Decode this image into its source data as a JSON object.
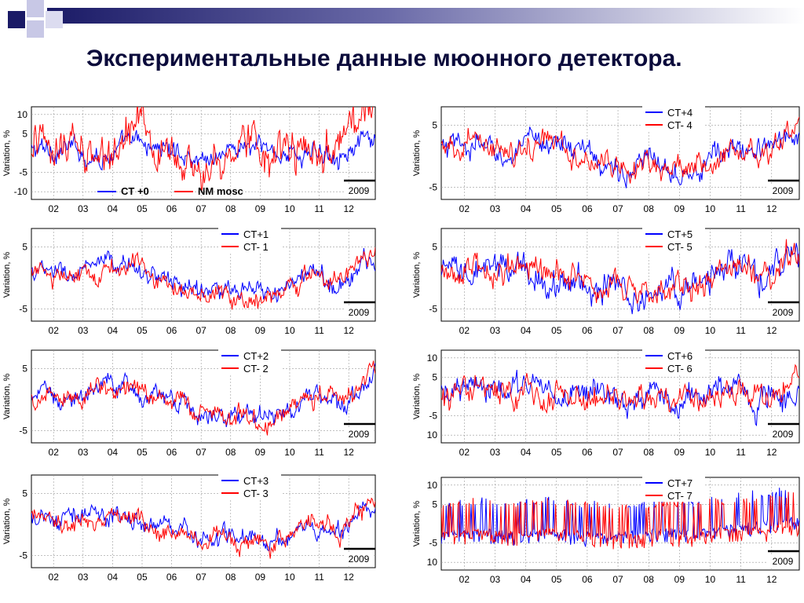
{
  "slide": {
    "title": "Экспериментальные данные мюонного детектора."
  },
  "colors": {
    "title": "#0b0b3b",
    "decor_dark": "#1a1a66",
    "decor_light": "#c8c8e6",
    "series_blue": "#0000ff",
    "series_red": "#ff0000",
    "grid": "#9a9a9a"
  },
  "chart_data": [
    {
      "type": "line",
      "panel": "top-left",
      "x": [
        "02",
        "03",
        "04",
        "05",
        "06",
        "07",
        "08",
        "09",
        "10",
        "11",
        "12"
      ],
      "yticks": [
        "10",
        "5",
        "-5",
        "-10"
      ],
      "ylabel": "Variation, %",
      "ylim": [
        -12,
        12
      ],
      "year_label": "2009",
      "grid": true,
      "legend_position": "bottom",
      "series": [
        {
          "name": "CT +0",
          "color": "#0000ff",
          "amplitude": 3,
          "values": [
            0.5,
            1.2,
            -0.8,
            2.4,
            1.1,
            -1.5,
            1.8,
            0.6,
            -0.5,
            1.2,
            2.6
          ]
        },
        {
          "name": "NM mosc",
          "color": "#ff0000",
          "amplitude": 6,
          "values": [
            1.0,
            3.5,
            -4.0,
            6.5,
            2.0,
            -5.0,
            4.0,
            1.5,
            -2.0,
            3.0,
            9.0
          ]
        }
      ]
    },
    {
      "type": "line",
      "panel": "right-1",
      "x": [
        "02",
        "03",
        "04",
        "05",
        "06",
        "07",
        "08",
        "09",
        "10",
        "11",
        "12"
      ],
      "yticks": [
        "5",
        "-5"
      ],
      "ylabel": "Variation, %",
      "ylim": [
        -7,
        8
      ],
      "year_label": "2009",
      "grid": true,
      "legend_position": "top-right",
      "series": [
        {
          "name": "CT+4",
          "color": "#0000ff",
          "amplitude": 2.2,
          "values": [
            1.0,
            1.5,
            0.0,
            3.0,
            0.5,
            -2.5,
            -1.0,
            -1.5,
            0.5,
            1.0,
            4.0
          ]
        },
        {
          "name": "CT- 4",
          "color": "#ff0000",
          "amplitude": 2.2,
          "values": [
            0.8,
            1.3,
            -0.2,
            2.8,
            0.3,
            -2.8,
            -1.2,
            -1.8,
            0.3,
            0.8,
            4.5
          ]
        }
      ]
    },
    {
      "type": "line",
      "panel": "left-2",
      "x": [
        "02",
        "03",
        "04",
        "05",
        "06",
        "07",
        "08",
        "09",
        "10",
        "11",
        "12"
      ],
      "yticks": [
        "5",
        "-5"
      ],
      "ylabel": "Variation, %",
      "ylim": [
        -7,
        8
      ],
      "year_label": "2009",
      "grid": true,
      "legend_position": "top-right",
      "series": [
        {
          "name": "CT+1",
          "color": "#0000ff",
          "amplitude": 1.8,
          "values": [
            1.0,
            0.5,
            1.5,
            2.0,
            -0.5,
            -2.0,
            -2.5,
            -3.0,
            0.5,
            -1.0,
            3.5
          ]
        },
        {
          "name": "CT- 1",
          "color": "#ff0000",
          "amplitude": 1.8,
          "values": [
            0.8,
            0.3,
            1.3,
            1.8,
            -0.7,
            -2.2,
            -2.7,
            -3.5,
            1.0,
            -0.5,
            4.0
          ]
        }
      ]
    },
    {
      "type": "line",
      "panel": "right-2",
      "x": [
        "02",
        "03",
        "04",
        "05",
        "06",
        "07",
        "08",
        "09",
        "10",
        "11",
        "12"
      ],
      "yticks": [
        "5",
        "-5"
      ],
      "ylabel": "Variation, %",
      "ylim": [
        -7,
        8
      ],
      "year_label": "2009",
      "grid": true,
      "legend_position": "top-right",
      "series": [
        {
          "name": "CT+5",
          "color": "#0000ff",
          "amplitude": 2.8,
          "values": [
            0.0,
            0.5,
            1.5,
            0.0,
            -1.0,
            -2.0,
            -2.5,
            -1.5,
            2.0,
            0.5,
            3.5
          ]
        },
        {
          "name": "CT- 5",
          "color": "#ff0000",
          "amplitude": 2.5,
          "values": [
            0.2,
            0.7,
            1.8,
            0.2,
            -0.8,
            -2.3,
            -2.2,
            -1.8,
            1.8,
            0.8,
            3.8
          ]
        }
      ]
    },
    {
      "type": "line",
      "panel": "left-3",
      "x": [
        "02",
        "03",
        "04",
        "05",
        "06",
        "07",
        "08",
        "09",
        "10",
        "11",
        "12"
      ],
      "yticks": [
        "5",
        "-5"
      ],
      "ylabel": "Variation, %",
      "ylim": [
        -7,
        8
      ],
      "year_label": "2009",
      "grid": true,
      "legend_position": "top-right",
      "series": [
        {
          "name": "CT+2",
          "color": "#0000ff",
          "amplitude": 1.8,
          "values": [
            0.8,
            0.3,
            2.0,
            1.5,
            -0.8,
            -2.0,
            -2.5,
            -3.0,
            0.8,
            -1.0,
            3.5
          ]
        },
        {
          "name": "CT- 2",
          "color": "#ff0000",
          "amplitude": 1.8,
          "values": [
            0.6,
            0.1,
            1.8,
            1.3,
            -1.0,
            -2.3,
            -2.8,
            -3.3,
            1.2,
            -0.5,
            4.0
          ]
        }
      ]
    },
    {
      "type": "line",
      "panel": "right-3",
      "x": [
        "02",
        "03",
        "04",
        "05",
        "06",
        "07",
        "08",
        "09",
        "10",
        "11",
        "12"
      ],
      "yticks": [
        "10",
        "5",
        "-5",
        "10"
      ],
      "ylabel": "Variation, %",
      "ylim": [
        -12,
        12
      ],
      "year_label": "2009",
      "grid": true,
      "legend_position": "top-right",
      "series": [
        {
          "name": "CT+6",
          "color": "#0000ff",
          "amplitude": 4,
          "values": [
            0.0,
            1.0,
            2.0,
            1.0,
            0.0,
            -1.0,
            0.0,
            -1.0,
            1.5,
            0.5,
            3.0
          ]
        },
        {
          "name": "CT- 6",
          "color": "#ff0000",
          "amplitude": 4,
          "values": [
            -0.5,
            0.5,
            1.5,
            0.5,
            -0.5,
            -1.5,
            -0.5,
            -1.5,
            1.0,
            0.0,
            2.5
          ]
        }
      ]
    },
    {
      "type": "line",
      "panel": "left-4",
      "x": [
        "02",
        "03",
        "04",
        "05",
        "06",
        "07",
        "08",
        "09",
        "10",
        "11",
        "12"
      ],
      "yticks": [
        "5",
        "-5"
      ],
      "ylabel": "Variation, %",
      "ylim": [
        -7,
        8
      ],
      "year_label": "2009",
      "grid": true,
      "legend_position": "top-right",
      "series": [
        {
          "name": "CT+3",
          "color": "#0000ff",
          "amplitude": 1.8,
          "values": [
            1.0,
            0.5,
            2.0,
            1.0,
            -0.5,
            -2.0,
            -2.5,
            -3.0,
            0.5,
            -1.5,
            3.5
          ]
        },
        {
          "name": "CT- 3",
          "color": "#ff0000",
          "amplitude": 1.8,
          "values": [
            0.5,
            0.0,
            1.5,
            0.5,
            -1.0,
            -2.5,
            -3.0,
            -3.5,
            1.0,
            -1.0,
            4.0
          ]
        }
      ]
    },
    {
      "type": "line",
      "panel": "right-4",
      "x": [
        "02",
        "03",
        "04",
        "05",
        "06",
        "07",
        "08",
        "09",
        "10",
        "11",
        "12"
      ],
      "yticks": [
        "10",
        "5",
        "-5",
        "10"
      ],
      "ylabel": "Variation, %",
      "ylim": [
        -12,
        12
      ],
      "year_label": "2009",
      "grid": true,
      "legend_position": "top-right",
      "series": [
        {
          "name": "CT+7",
          "color": "#0000ff",
          "amplitude": 6,
          "values": [
            -3.0,
            -2.0,
            -3.0,
            -2.0,
            -3.0,
            -3.0,
            -2.0,
            -2.0,
            -1.0,
            0.0,
            1.0
          ]
        },
        {
          "name": "CT- 7",
          "color": "#ff0000",
          "amplitude": 6,
          "values": [
            -3.0,
            -2.0,
            -3.0,
            -2.0,
            -3.0,
            -4.0,
            -3.0,
            -3.0,
            -2.0,
            -2.0,
            0.0
          ]
        }
      ]
    }
  ]
}
